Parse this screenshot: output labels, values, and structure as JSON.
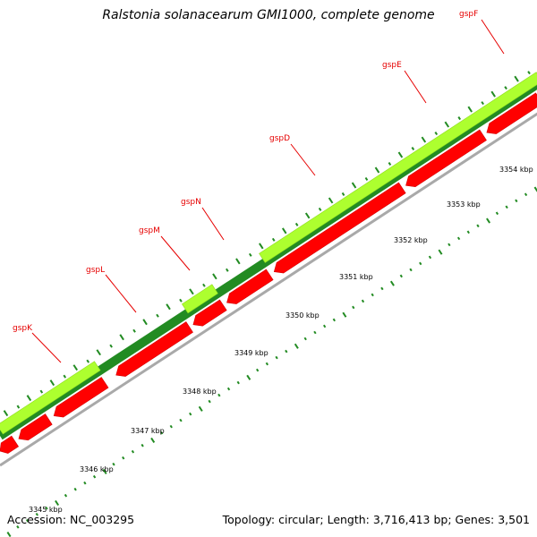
{
  "map": {
    "title": "Ralstonia solanacearum GMI1000, complete genome",
    "accession_text": "Accession: NC_003295",
    "topology_text": "Topology: circular; Length: 3,716,413 bp; Genes: 3,501"
  },
  "colors": {
    "forward_light": "#adff2f",
    "forward_dark": "#228b22",
    "reverse": "#ff0000",
    "backbone": "#a9a9a9",
    "gene_label": "#e60000",
    "tick": "#228b22"
  },
  "genes": [
    {
      "name": "gspK"
    },
    {
      "name": "gspL"
    },
    {
      "name": "gspM"
    },
    {
      "name": "gspN"
    },
    {
      "name": "gspD"
    },
    {
      "name": "gspE"
    },
    {
      "name": "gspF"
    }
  ],
  "kbp_ticks": [
    "3345 kbp",
    "3346 kbp",
    "3347 kbp",
    "3348 kbp",
    "3349 kbp",
    "3350 kbp",
    "3351 kbp",
    "3352 kbp",
    "3353 kbp",
    "3354 kbp"
  ]
}
